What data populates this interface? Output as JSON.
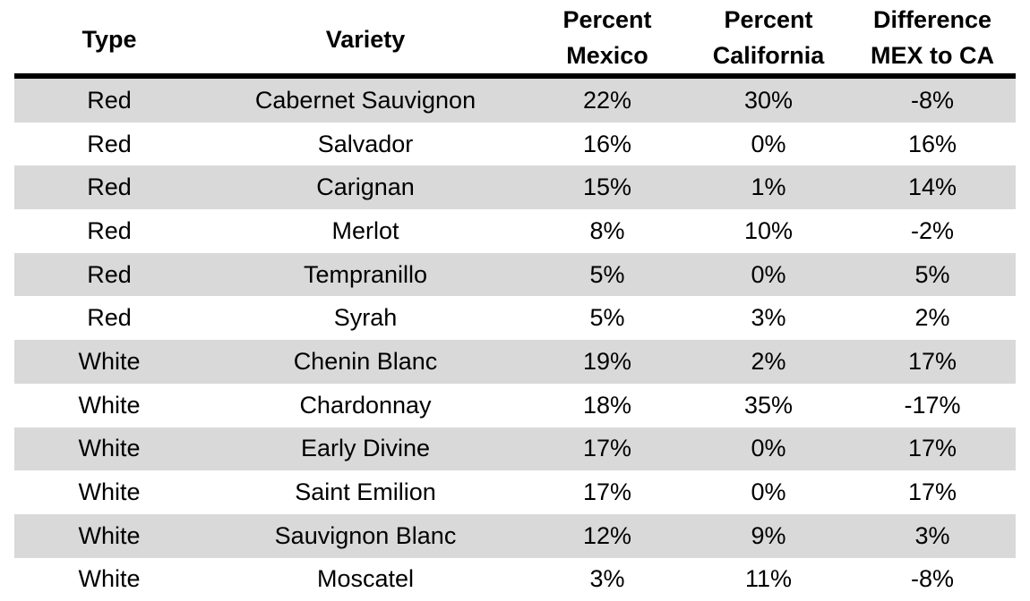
{
  "table": {
    "headers": {
      "type": "Type",
      "variety": "Variety",
      "percent_mexico": [
        "Percent",
        "Mexico"
      ],
      "percent_california": [
        "Percent",
        "California"
      ],
      "difference": [
        "Difference",
        "MEX to CA"
      ]
    },
    "rows": [
      {
        "type": "Red",
        "variety": "Cabernet Sauvignon",
        "percent_mexico": "22%",
        "percent_california": "30%",
        "difference": "-8%"
      },
      {
        "type": "Red",
        "variety": "Salvador",
        "percent_mexico": "16%",
        "percent_california": "0%",
        "difference": "16%"
      },
      {
        "type": "Red",
        "variety": "Carignan",
        "percent_mexico": "15%",
        "percent_california": "1%",
        "difference": "14%"
      },
      {
        "type": "Red",
        "variety": "Merlot",
        "percent_mexico": "8%",
        "percent_california": "10%",
        "difference": "-2%"
      },
      {
        "type": "Red",
        "variety": "Tempranillo",
        "percent_mexico": "5%",
        "percent_california": "0%",
        "difference": "5%"
      },
      {
        "type": "Red",
        "variety": "Syrah",
        "percent_mexico": "5%",
        "percent_california": "3%",
        "difference": "2%"
      },
      {
        "type": "White",
        "variety": "Chenin Blanc",
        "percent_mexico": "19%",
        "percent_california": "2%",
        "difference": "17%"
      },
      {
        "type": "White",
        "variety": "Chardonnay",
        "percent_mexico": "18%",
        "percent_california": "35%",
        "difference": "-17%"
      },
      {
        "type": "White",
        "variety": "Early Divine",
        "percent_mexico": "17%",
        "percent_california": "0%",
        "difference": "17%"
      },
      {
        "type": "White",
        "variety": "Saint Emilion",
        "percent_mexico": "17%",
        "percent_california": "0%",
        "difference": "17%"
      },
      {
        "type": "White",
        "variety": "Sauvignon Blanc",
        "percent_mexico": "12%",
        "percent_california": "9%",
        "difference": "3%"
      },
      {
        "type": "White",
        "variety": "Moscatel",
        "percent_mexico": "3%",
        "percent_california": "11%",
        "difference": "-8%"
      }
    ],
    "colors": {
      "shaded_row": "#d9d9d9",
      "plain_row": "#ffffff",
      "header_rule": "#000000"
    }
  }
}
